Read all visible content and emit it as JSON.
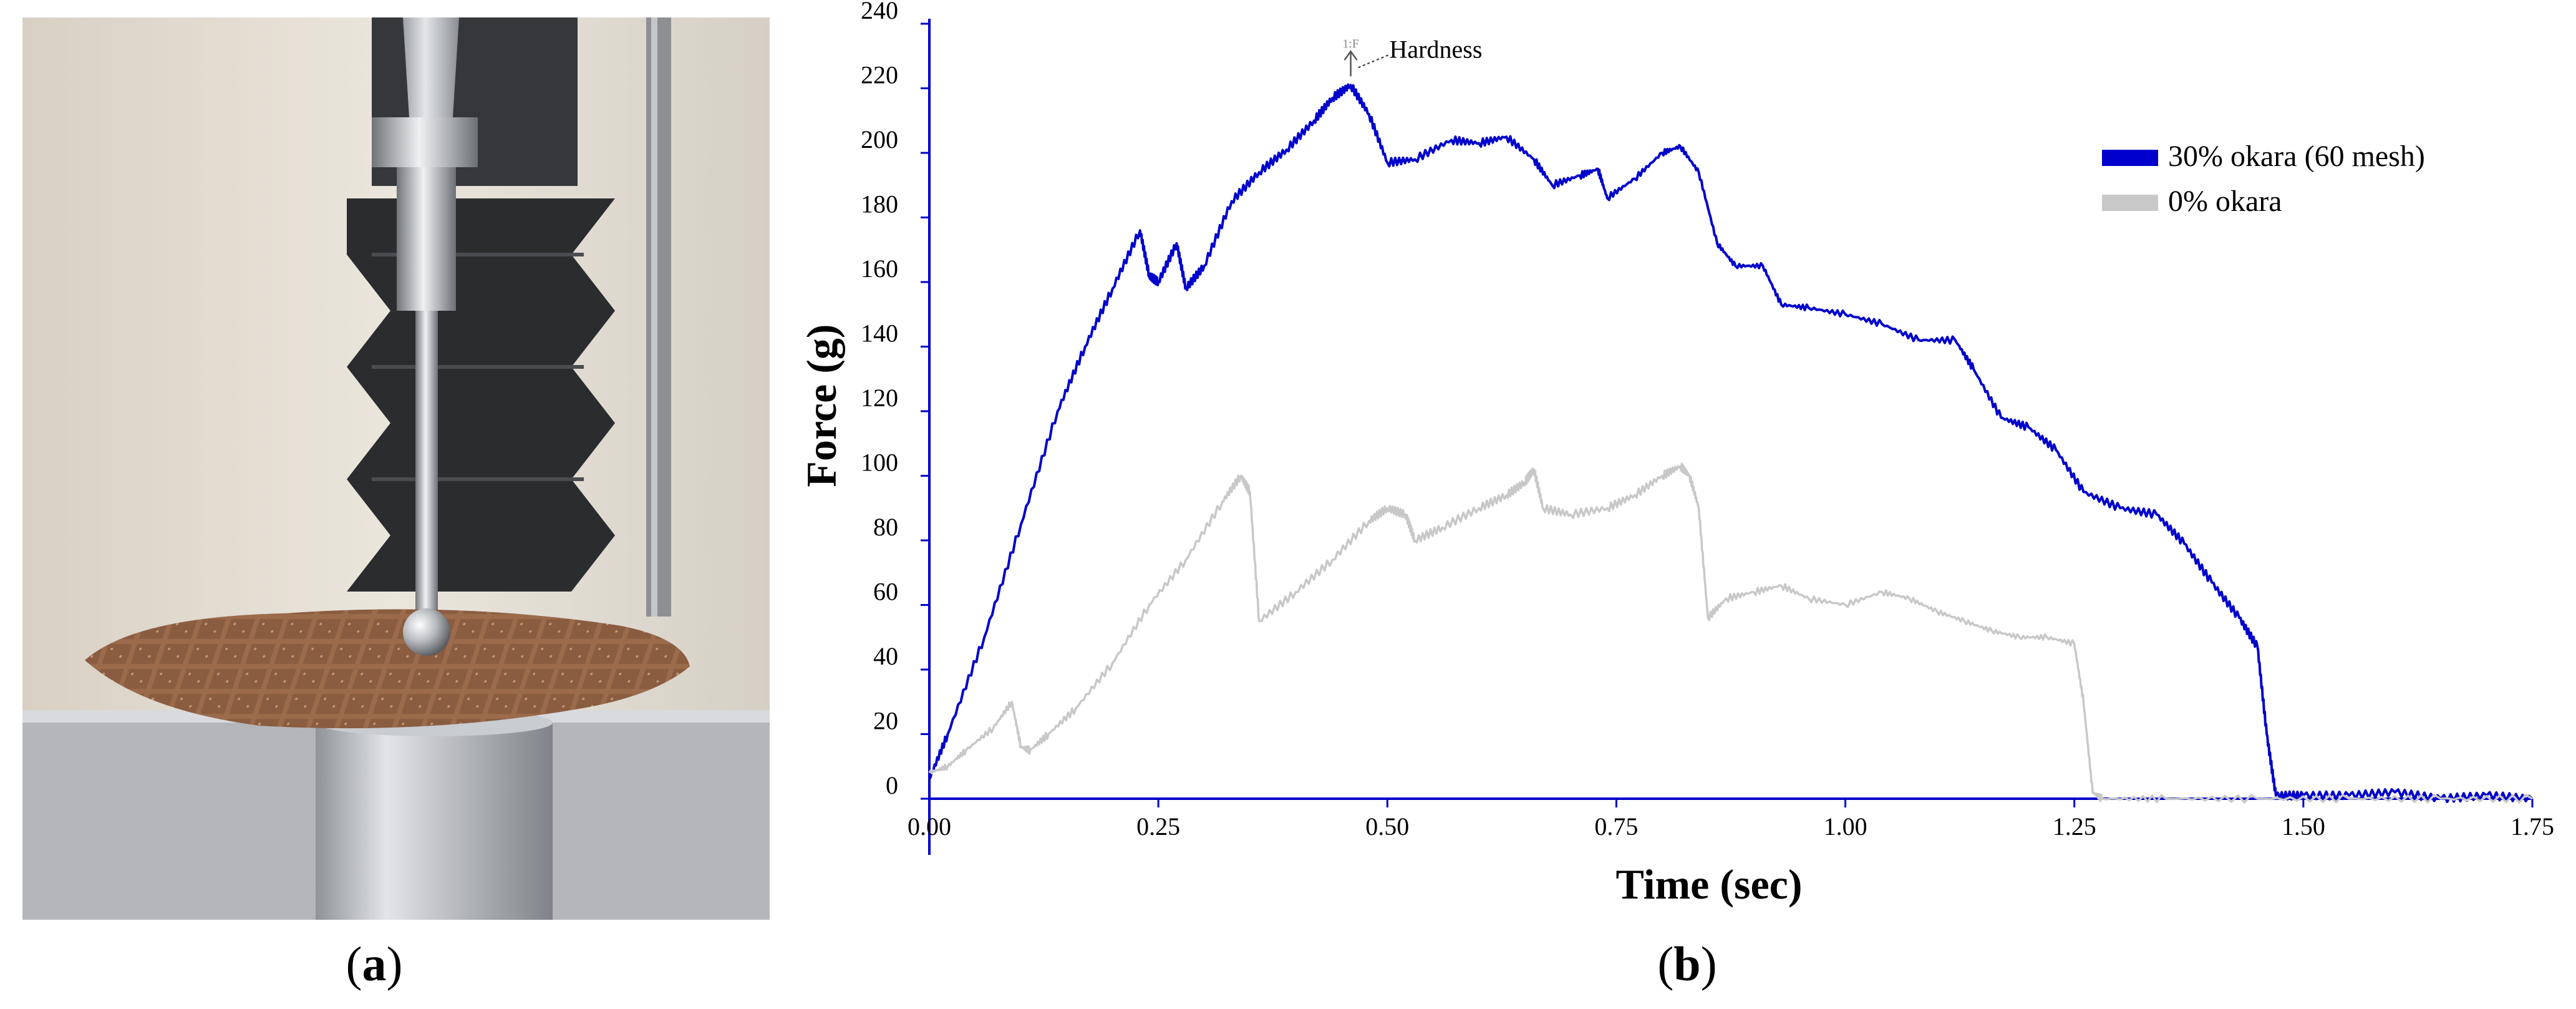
{
  "panels": {
    "a": {
      "open": "(",
      "letter": "a",
      "close": ")"
    },
    "b": {
      "open": "(",
      "letter": "b",
      "close": ")"
    }
  },
  "photo": {
    "description_icon": "texture-analyzer-photo-icon",
    "colors": {
      "wall": "#e6e0d6",
      "wafer": "#9b6b4c",
      "metal": "#b9bcc0",
      "bellows": "#2b2c2e"
    }
  },
  "chart_data": {
    "type": "line",
    "xlabel": "Time (sec)",
    "ylabel": "Force (g)",
    "xlim": [
      0,
      1.75
    ],
    "ylim": [
      0,
      240
    ],
    "x_ticks": [
      "0.00",
      "0.25",
      "0.50",
      "0.75",
      "1.00",
      "1.25",
      "1.50",
      "1.75"
    ],
    "y_ticks": [
      "0",
      "20",
      "40",
      "60",
      "80",
      "100",
      "120",
      "140",
      "160",
      "180",
      "200",
      "220",
      "240"
    ],
    "grid": false,
    "legend_position": "top-right",
    "annotation": {
      "text": "Hardness",
      "marker": "1:F",
      "x": 0.46,
      "y": 221
    },
    "series": [
      {
        "name": "30% okara (60 mesh)",
        "color": "#0000cc",
        "x": [
          0.0,
          0.02,
          0.06,
          0.1,
          0.14,
          0.17,
          0.2,
          0.23,
          0.24,
          0.25,
          0.27,
          0.28,
          0.3,
          0.33,
          0.36,
          0.39,
          0.42,
          0.44,
          0.46,
          0.48,
          0.5,
          0.53,
          0.57,
          0.6,
          0.63,
          0.66,
          0.68,
          0.71,
          0.73,
          0.74,
          0.77,
          0.8,
          0.82,
          0.84,
          0.86,
          0.88,
          0.91,
          0.93,
          0.96,
          1.0,
          1.04,
          1.08,
          1.12,
          1.14,
          1.17,
          1.2,
          1.23,
          1.26,
          1.3,
          1.34,
          1.37,
          1.4,
          1.43,
          1.45,
          1.46,
          1.47,
          1.5,
          1.55,
          1.6,
          1.65,
          1.7,
          1.75
        ],
        "y": [
          6,
          20,
          50,
          85,
          120,
          140,
          158,
          176,
          162,
          160,
          172,
          158,
          165,
          185,
          194,
          201,
          210,
          217,
          221,
          212,
          197,
          198,
          204,
          203,
          205,
          198,
          190,
          193,
          195,
          186,
          192,
          200,
          202,
          194,
          172,
          165,
          165,
          153,
          152,
          150,
          147,
          142,
          142,
          133,
          118,
          115,
          108,
          95,
          90,
          88,
          79,
          67,
          56,
          47,
          20,
          1,
          1,
          1,
          2,
          0,
          1,
          0
        ]
      },
      {
        "name": "0% okara",
        "color": "#c8c8c8",
        "x": [
          0.0,
          0.02,
          0.04,
          0.07,
          0.09,
          0.1,
          0.11,
          0.13,
          0.16,
          0.2,
          0.24,
          0.28,
          0.32,
          0.34,
          0.35,
          0.36,
          0.4,
          0.44,
          0.48,
          0.5,
          0.52,
          0.53,
          0.56,
          0.6,
          0.63,
          0.65,
          0.66,
          0.67,
          0.7,
          0.74,
          0.77,
          0.8,
          0.82,
          0.83,
          0.84,
          0.85,
          0.87,
          0.9,
          0.93,
          0.96,
          1.0,
          1.04,
          1.07,
          1.1,
          1.13,
          1.16,
          1.19,
          1.22,
          1.25,
          1.26,
          1.27,
          1.28,
          1.35,
          1.45,
          1.55,
          1.65,
          1.75
        ],
        "y": [
          8,
          10,
          15,
          22,
          30,
          16,
          15,
          20,
          28,
          42,
          60,
          74,
          92,
          100,
          95,
          55,
          64,
          74,
          86,
          90,
          88,
          80,
          84,
          90,
          94,
          98,
          102,
          90,
          88,
          90,
          94,
          100,
          103,
          100,
          90,
          56,
          62,
          64,
          66,
          62,
          60,
          64,
          62,
          58,
          55,
          52,
          50,
          50,
          48,
          30,
          2,
          0,
          0,
          0,
          0,
          0,
          0
        ]
      }
    ]
  }
}
